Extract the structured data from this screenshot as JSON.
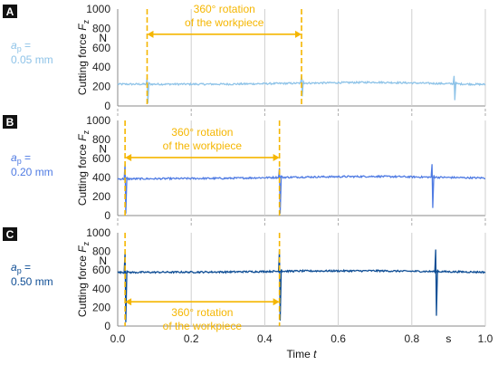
{
  "chart_data": [
    {
      "type": "line",
      "panel": "A",
      "depth_label": "a",
      "depth_sub": "p",
      "depth_eq": " =",
      "depth_value": "0.05 mm",
      "color": "#8EC3E8",
      "ylabel": "Cutting force ",
      "ylabel_var": "F",
      "ylabel_sub": "z",
      "y_unit": "N",
      "yticks": [
        "0",
        "200",
        "400",
        "600",
        "800",
        "1000"
      ],
      "ylim": [
        0,
        1000
      ],
      "xlim": [
        0,
        1.0
      ],
      "baseline": 225,
      "baseline_drift": [
        [
          0,
          225
        ],
        [
          0.3,
          225
        ],
        [
          0.5,
          235
        ],
        [
          0.7,
          245
        ],
        [
          1.0,
          222
        ]
      ],
      "spikes": [
        {
          "x": 0.08,
          "up": 290,
          "down": 30
        },
        {
          "x": 0.5,
          "up": 310,
          "down": 100
        },
        {
          "x": 0.915,
          "up": 310,
          "down": 60
        }
      ],
      "rotation_start": 0.08,
      "rotation_end": 0.5,
      "annotation": [
        "360° rotation",
        "of the workpiece"
      ],
      "annotation_y": 740
    },
    {
      "type": "line",
      "panel": "B",
      "depth_label": "a",
      "depth_sub": "p",
      "depth_eq": " =",
      "depth_value": "0.20 mm",
      "color": "#4F7BE3",
      "ylabel": "Cutting force ",
      "ylabel_var": "F",
      "ylabel_sub": "z",
      "y_unit": "N",
      "yticks": [
        "0",
        "200",
        "400",
        "600",
        "800",
        "1000"
      ],
      "ylim": [
        0,
        1000
      ],
      "xlim": [
        0,
        1.0
      ],
      "baseline": 390,
      "baseline_drift": [
        [
          0,
          385
        ],
        [
          0.3,
          392
        ],
        [
          0.5,
          405
        ],
        [
          0.7,
          412
        ],
        [
          1.0,
          395
        ]
      ],
      "spikes": [
        {
          "x": 0.02,
          "up": 540,
          "down": 20
        },
        {
          "x": 0.44,
          "up": 500,
          "down": 20
        },
        {
          "x": 0.855,
          "up": 540,
          "down": 80
        }
      ],
      "rotation_start": 0.02,
      "rotation_end": 0.44,
      "annotation": [
        "360° rotation",
        "of the workpiece"
      ],
      "annotation_y": 610
    },
    {
      "type": "line",
      "panel": "C",
      "depth_label": "a",
      "depth_sub": "p",
      "depth_eq": " =",
      "depth_value": "0.50 mm",
      "color": "#0F4E95",
      "ylabel": "Cutting force ",
      "ylabel_var": "F",
      "ylabel_sub": "z",
      "y_unit": "N",
      "yticks": [
        "0",
        "200",
        "400",
        "600",
        "800",
        "1000"
      ],
      "ylim": [
        0,
        1000
      ],
      "xlim": [
        0,
        1.0
      ],
      "baseline": 580,
      "baseline_drift": [
        [
          0,
          575
        ],
        [
          0.3,
          580
        ],
        [
          0.5,
          590
        ],
        [
          0.7,
          592
        ],
        [
          1.0,
          578
        ]
      ],
      "spikes": [
        {
          "x": 0.02,
          "up": 790,
          "down": 40
        },
        {
          "x": 0.44,
          "up": 820,
          "down": 60
        },
        {
          "x": 0.865,
          "up": 820,
          "down": 110
        }
      ],
      "rotation_start": 0.02,
      "rotation_end": 0.44,
      "annotation": [
        "360° rotation",
        "of the workpiece"
      ],
      "annotation_y": 260,
      "xticks": [
        "0.0",
        "0.2",
        "0.4",
        "0.6",
        "0.8",
        "1.0"
      ],
      "x_unit": "s",
      "xlabel": "Time ",
      "xlabel_var": "t"
    }
  ],
  "colors": {
    "annotation": "#F5B600",
    "axis": "#888888",
    "grid": "#cfcfcf",
    "panel_badge": "#111111"
  }
}
